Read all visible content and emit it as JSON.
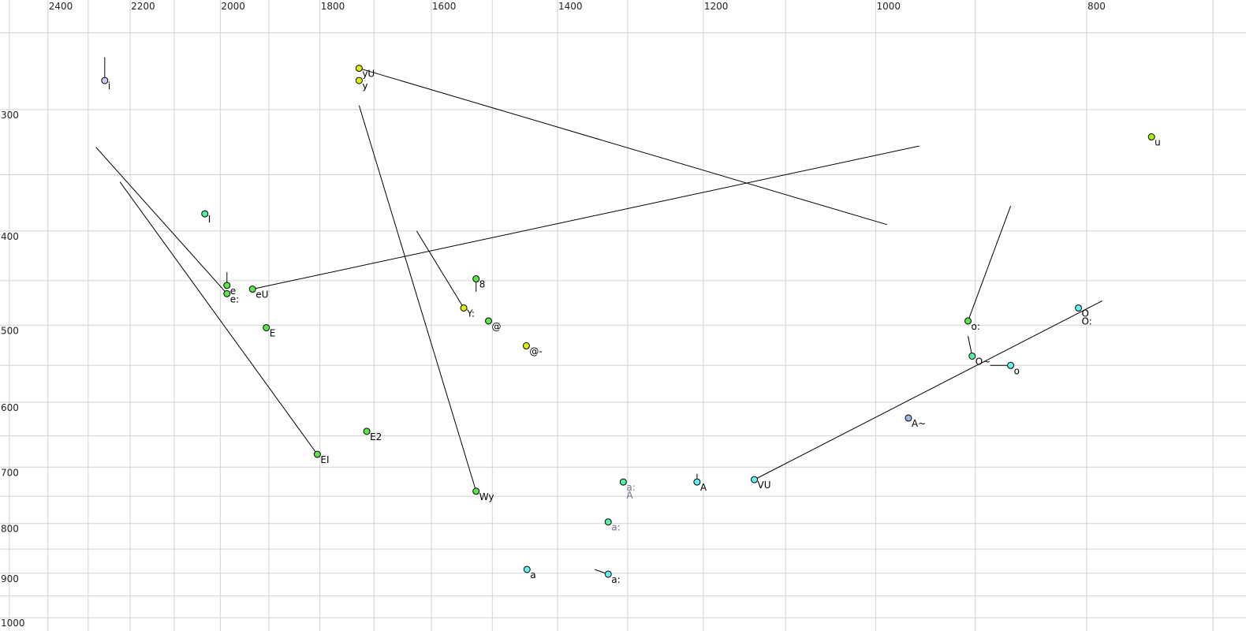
{
  "chart_data": {
    "type": "scatter",
    "title": "",
    "xlabel": "",
    "ylabel": "",
    "x_scale": "log",
    "y_scale": "log",
    "x_reversed": true,
    "xlim": [
      2525,
      676
    ],
    "ylim": [
      231,
      1032
    ],
    "x_axis_position": "top",
    "grid": true,
    "x_ticks": [
      2400,
      2200,
      2000,
      1800,
      1600,
      1400,
      1200,
      1000,
      800
    ],
    "y_ticks": [
      300,
      400,
      500,
      600,
      700,
      800,
      900,
      1000
    ],
    "x_grid_step": 100,
    "y_grid_step": 50,
    "colors": {
      "grid": "#d2d2d2",
      "yellow": "#dcf000",
      "green": "#5ae646",
      "mint": "#50f0a0",
      "cyan": "#64f0f0",
      "lavender": "#c8c8f0",
      "blue": "#a0b4f0",
      "lime": "#a0f000",
      "label_gray": "#707090"
    },
    "points": [
      {
        "label": "i",
        "x": 2260,
        "y": 280,
        "color": "lavender"
      },
      {
        "label": "yU",
        "x": 1727,
        "y": 272,
        "color": "yellow"
      },
      {
        "label": "y",
        "x": 1727,
        "y": 280,
        "color": "yellow"
      },
      {
        "label": "I",
        "x": 2033,
        "y": 384,
        "color": "mint"
      },
      {
        "label": "e",
        "x": 1986,
        "y": 455,
        "color": "green"
      },
      {
        "label": "e:",
        "x": 1986,
        "y": 464,
        "color": "green"
      },
      {
        "label": "eU",
        "x": 1933,
        "y": 459,
        "color": "green"
      },
      {
        "label": "E",
        "x": 1905,
        "y": 503,
        "color": "green"
      },
      {
        "label": "EI",
        "x": 1805,
        "y": 679,
        "color": "green"
      },
      {
        "label": "E2",
        "x": 1713,
        "y": 643,
        "color": "green"
      },
      {
        "label": "8",
        "x": 1526,
        "y": 448,
        "color": "green"
      },
      {
        "label": "Y:",
        "x": 1546,
        "y": 480,
        "color": "yellow"
      },
      {
        "label": "@",
        "x": 1506,
        "y": 495,
        "color": "green"
      },
      {
        "label": "@-",
        "x": 1447,
        "y": 525,
        "color": "yellow"
      },
      {
        "label": "Wy",
        "x": 1526,
        "y": 741,
        "color": "green"
      },
      {
        "label": "a:",
        "x": 1306,
        "y": 725,
        "color": "mint",
        "label_color": "label_gray"
      },
      {
        "label": "A",
        "x": 1306,
        "y": 725,
        "color": "mint",
        "label_color": "label_gray"
      },
      {
        "label": "a:",
        "x": 1327,
        "y": 797,
        "color": "mint",
        "label_color": "label_gray"
      },
      {
        "label": "A",
        "x": 1208,
        "y": 725,
        "color": "cyan"
      },
      {
        "label": "VU",
        "x": 1137,
        "y": 721,
        "color": "cyan"
      },
      {
        "label": "a",
        "x": 1446,
        "y": 892,
        "color": "cyan"
      },
      {
        "label": "a:",
        "x": 1327,
        "y": 902,
        "color": "cyan"
      },
      {
        "label": "A~",
        "x": 966,
        "y": 623,
        "color": "blue"
      },
      {
        "label": "o:",
        "x": 907,
        "y": 495,
        "color": "green"
      },
      {
        "label": "O~",
        "x": 903,
        "y": 538,
        "color": "mint"
      },
      {
        "label": "o",
        "x": 867,
        "y": 550,
        "color": "cyan"
      },
      {
        "label": "O",
        "x": 807,
        "y": 480,
        "color": "cyan"
      },
      {
        "label": "O:",
        "x": 807,
        "y": 480,
        "color": "cyan"
      },
      {
        "label": "u",
        "x": 747,
        "y": 320,
        "color": "lime"
      }
    ],
    "trajectories": [
      {
        "from": [
          2260,
          265
        ],
        "to": [
          2260,
          280
        ]
      },
      {
        "from": [
          1727,
          272
        ],
        "to": [
          988,
          394
        ]
      },
      {
        "from": [
          1933,
          459
        ],
        "to": [
          955,
          327
        ]
      },
      {
        "from": [
          2281,
          328
        ],
        "to": [
          1986,
          464
        ]
      },
      {
        "from": [
          2224,
          356
        ],
        "to": [
          1805,
          679
        ]
      },
      {
        "from": [
          1727,
          297
        ],
        "to": [
          1526,
          741
        ]
      },
      {
        "from": [
          1625,
          400
        ],
        "to": [
          1546,
          480
        ]
      },
      {
        "from": [
          1986,
          441
        ],
        "to": [
          1986,
          455
        ]
      },
      {
        "from": [
          1526,
          448
        ],
        "to": [
          1526,
          462
        ]
      },
      {
        "from": [
          1208,
          711
        ],
        "to": [
          1208,
          725
        ]
      },
      {
        "from": [
          1346,
          892
        ],
        "to": [
          1327,
          902
        ]
      },
      {
        "from": [
          907,
          495
        ],
        "to": [
          867,
          377
        ]
      },
      {
        "from": [
          907,
          513
        ],
        "to": [
          903,
          538
        ]
      },
      {
        "from": [
          886,
          550
        ],
        "to": [
          867,
          550
        ]
      },
      {
        "from": [
          1137,
          721
        ],
        "to": [
          787,
          472
        ]
      }
    ]
  }
}
